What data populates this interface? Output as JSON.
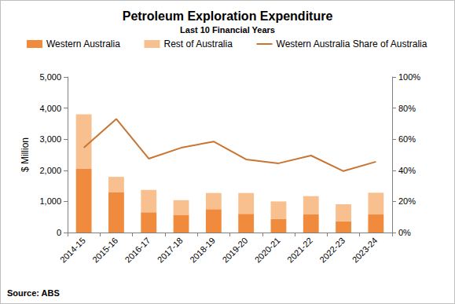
{
  "chart_data": {
    "type": "bar",
    "title": "Petroleum Exploration Expenditure",
    "subtitle": "Last 10 Financial Years",
    "ylabel": "$ Million",
    "annotations": [
      "Source: ABS"
    ],
    "stacked": true,
    "grid": false,
    "legend": "top",
    "categories": [
      "2014-15",
      "2015-16",
      "2016-17",
      "2017-18",
      "2018-19",
      "2019-20",
      "2020-21",
      "2021-22",
      "2022-23",
      "2023-24"
    ],
    "series": [
      {
        "name": "Western Australia",
        "type": "bar",
        "color": "#f08a3c",
        "values": [
          2060,
          1300,
          650,
          570,
          750,
          600,
          440,
          580,
          360,
          580
        ]
      },
      {
        "name": "Rest of Australia",
        "type": "bar",
        "color": "#f9c08f",
        "values": [
          1740,
          490,
          720,
          470,
          520,
          670,
          560,
          590,
          550,
          700
        ]
      },
      {
        "name": "Western Australia Share of Australia",
        "type": "line",
        "axis": "y2",
        "color": "#c87533",
        "values": [
          54.5,
          73,
          47.5,
          54.5,
          58.5,
          47,
          44.5,
          49.5,
          39.5,
          45.5
        ]
      }
    ],
    "ylim": [
      0,
      5000
    ],
    "yticks": [
      0,
      {
        "value": 1000,
        "label": "1,000"
      },
      {
        "value": 2000,
        "label": "2,000"
      },
      {
        "value": 3000,
        "label": "3,000"
      },
      {
        "value": 4000,
        "label": "4,000"
      },
      {
        "value": 5000,
        "label": "5,000"
      }
    ],
    "y2lim": [
      0,
      100
    ],
    "y2ticks": [
      {
        "value": 0,
        "label": "0%"
      },
      {
        "value": 20,
        "label": "20%"
      },
      {
        "value": 40,
        "label": "40%"
      },
      {
        "value": 60,
        "label": "60%"
      },
      {
        "value": 80,
        "label": "80%"
      },
      {
        "value": 100,
        "label": "100%"
      }
    ]
  }
}
